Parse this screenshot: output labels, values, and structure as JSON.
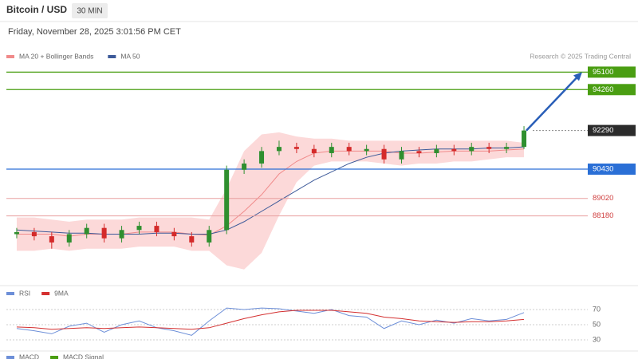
{
  "header": {
    "title": "Bitcoin / USD",
    "interval": "30 MIN",
    "timestamp": "Friday, November 28, 2025 3:01:56 PM CET",
    "source": "Research © 2025 Trading Central"
  },
  "chart_data": [
    {
      "type": "candlestick",
      "ylim": [
        84900,
        95500
      ],
      "up_color": "#2f8f2f",
      "down_color": "#d42a2a",
      "open": [
        87300,
        87400,
        87200,
        86900,
        87300,
        87600,
        87100,
        87500,
        87700,
        87400,
        87200,
        86900,
        87500,
        90400,
        90700,
        91300,
        91500,
        91400,
        91200,
        91500,
        91300,
        91400,
        90900,
        91300,
        91200,
        91400,
        91300,
        91500,
        91400,
        91500
      ],
      "high": [
        87600,
        87600,
        87400,
        87500,
        87800,
        87800,
        87700,
        87900,
        87900,
        87600,
        87400,
        87700,
        90600,
        90900,
        91500,
        91800,
        91700,
        91600,
        91700,
        91700,
        91600,
        91600,
        91500,
        91500,
        91600,
        91600,
        91700,
        91700,
        91700,
        92500
      ],
      "low": [
        87100,
        87000,
        86600,
        86700,
        87100,
        86900,
        86900,
        87300,
        87200,
        87000,
        86700,
        86700,
        87300,
        90200,
        90500,
        91100,
        91200,
        91000,
        91000,
        91100,
        91100,
        90700,
        90700,
        91000,
        91000,
        91100,
        91100,
        91200,
        91200,
        91400
      ],
      "close": [
        87400,
        87200,
        86900,
        87300,
        87600,
        87100,
        87500,
        87700,
        87400,
        87200,
        86900,
        87500,
        90400,
        90700,
        91300,
        91500,
        91400,
        91200,
        91500,
        91300,
        91400,
        90900,
        91300,
        91200,
        91400,
        91300,
        91500,
        91400,
        91500,
        92290
      ],
      "series": [
        {
          "name": "MA 20 + Bollinger Bands",
          "color": "#f08a8a",
          "band_color": "#fcd9d9",
          "values": [
            87300,
            87300,
            87300,
            87200,
            87300,
            87300,
            87300,
            87400,
            87400,
            87400,
            87300,
            87250,
            87700,
            88400,
            89200,
            90200,
            90800,
            91200,
            91300,
            91300,
            91300,
            91300,
            91200,
            91200,
            91250,
            91300,
            91300,
            91300,
            91350,
            91400
          ],
          "upper": [
            88100,
            88100,
            88000,
            87900,
            88000,
            88000,
            88000,
            88100,
            88100,
            88100,
            88100,
            88000,
            89500,
            91300,
            92100,
            92200,
            92000,
            91900,
            91900,
            91800,
            91800,
            91800,
            91800,
            91800,
            91800,
            91800,
            91800,
            91800,
            91800,
            91700
          ],
          "lower": [
            86500,
            86500,
            86600,
            86500,
            86600,
            86600,
            86600,
            86700,
            86700,
            86700,
            86500,
            86500,
            85800,
            85600,
            86400,
            88200,
            89800,
            90600,
            90800,
            90800,
            90800,
            90700,
            90600,
            90700,
            90700,
            90800,
            90800,
            90900,
            91000,
            91000
          ]
        },
        {
          "name": "MA 50",
          "color": "#3d5a99",
          "values": [
            87500,
            87450,
            87400,
            87350,
            87350,
            87300,
            87300,
            87300,
            87350,
            87350,
            87300,
            87300,
            87500,
            87900,
            88400,
            88900,
            89400,
            89900,
            90300,
            90700,
            91000,
            91200,
            91300,
            91350,
            91400,
            91400,
            91400,
            91450,
            91450,
            91500
          ]
        }
      ],
      "levels": [
        {
          "value": 95100,
          "color": "#4a9e12",
          "style": "solid"
        },
        {
          "value": 94260,
          "color": "#4a9e12",
          "style": "solid"
        },
        {
          "value": 92290,
          "color": "#2b2b2b",
          "style": "dotted"
        },
        {
          "value": 90430,
          "color": "#2a6fd6",
          "style": "solid"
        },
        {
          "value": 89020,
          "color": "#e8a0a0",
          "style": "text"
        },
        {
          "value": 88180,
          "color": "#e8a0a0",
          "style": "text"
        }
      ],
      "target": 95100,
      "arrow_color": "#2a5fb8"
    },
    {
      "type": "line",
      "ylim": [
        20,
        80
      ],
      "yticks": [
        30,
        50,
        70
      ],
      "series": [
        {
          "name": "RSI",
          "color": "#6d8fd8",
          "values": [
            45,
            42,
            38,
            48,
            52,
            40,
            50,
            55,
            46,
            42,
            36,
            55,
            72,
            70,
            72,
            71,
            68,
            65,
            70,
            62,
            60,
            45,
            55,
            50,
            56,
            52,
            58,
            55,
            57,
            66
          ]
        },
        {
          "name": "9MA",
          "color": "#d43030",
          "values": [
            47,
            46,
            44,
            45,
            46,
            45,
            46,
            47,
            46,
            45,
            44,
            46,
            52,
            58,
            63,
            67,
            69,
            69,
            69,
            67,
            65,
            60,
            58,
            55,
            54,
            53,
            54,
            54,
            55,
            57
          ]
        }
      ]
    },
    {
      "type": "line",
      "series": [
        {
          "name": "MACD",
          "color": "#6d8fd8"
        },
        {
          "name": "MACD Signal",
          "color": "#4a9e12"
        }
      ]
    }
  ]
}
